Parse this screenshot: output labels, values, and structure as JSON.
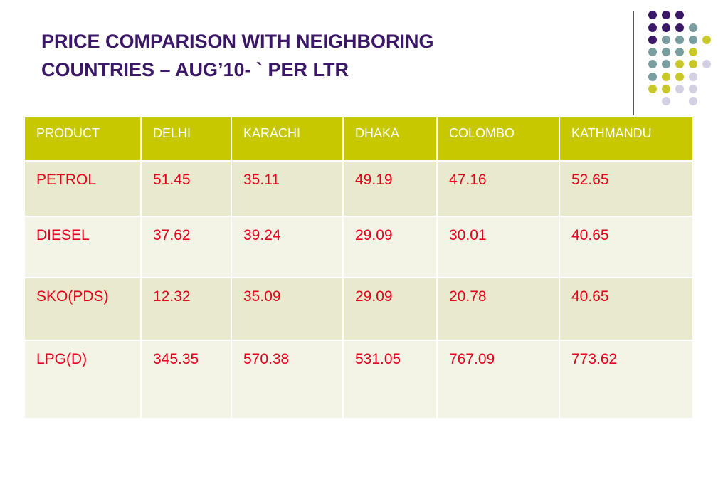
{
  "slide": {
    "title_line1": "PRICE COMPARISON WITH NEIGHBORING",
    "title_line2": "COUNTRIES – AUG’10- ` PER LTR"
  },
  "colors": {
    "title": "#3b1767",
    "header_bg": "#c8c800",
    "row_bg_a": "#e9e9cd",
    "row_bg_b": "#f4f4e6",
    "cell_text": "#e0001b",
    "dot_purple": "#3b1767",
    "dot_teal": "#7a9ea0",
    "dot_olive": "#c8c82a",
    "dot_lavender": "#d4d0e4"
  },
  "table": {
    "headers": [
      "PRODUCT",
      "DELHI",
      "KARACHI",
      "DHAKA",
      "COLOMBO",
      "KATHMANDU"
    ],
    "rows": [
      [
        "PETROL",
        "51.45",
        "35.11",
        "49.19",
        "47.16",
        "52.65"
      ],
      [
        "DIESEL",
        "37.62",
        "39.24",
        "29.09",
        "30.01",
        "40.65"
      ],
      [
        "SKO(PDS)",
        "12.32",
        "35.09",
        "29.09",
        "20.78",
        "40.65"
      ],
      [
        "LPG(D)",
        "345.35",
        "570.38",
        "531.05",
        "767.09",
        "773.62"
      ]
    ]
  }
}
